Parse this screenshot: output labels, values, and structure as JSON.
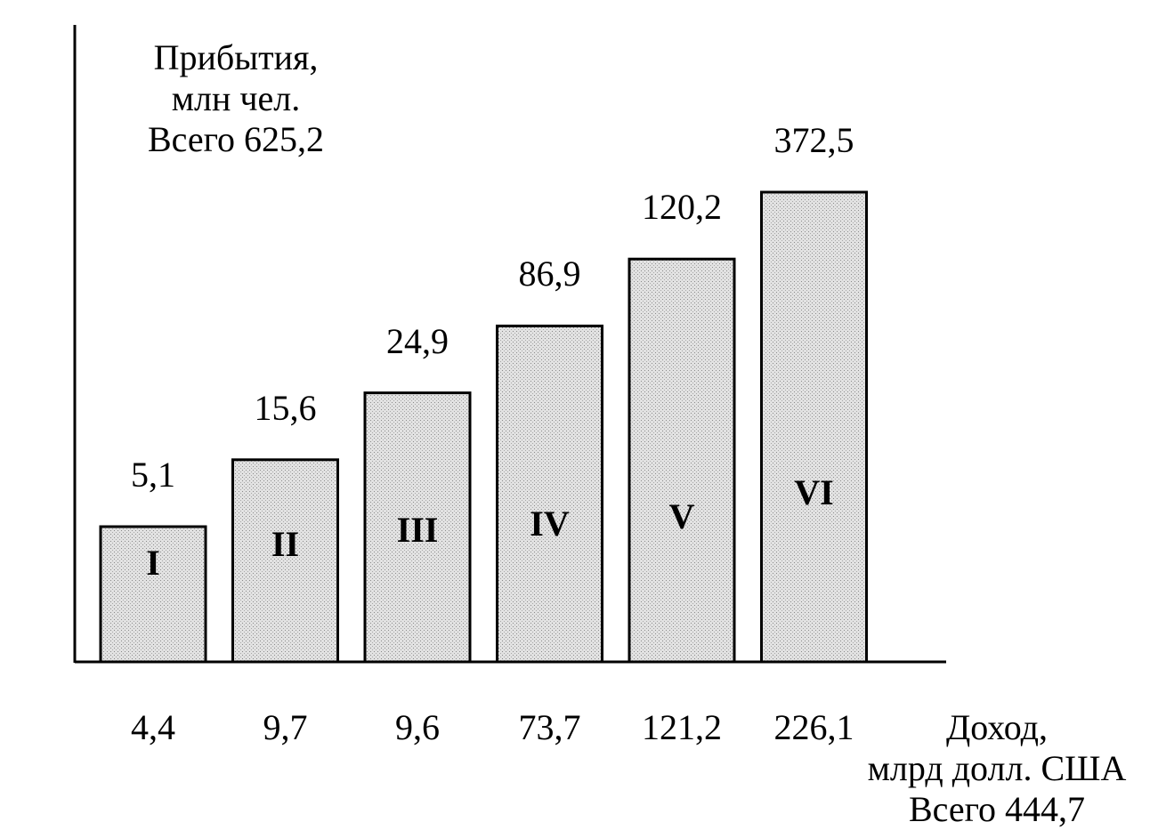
{
  "chart_data": {
    "type": "bar",
    "categories": [
      "I",
      "II",
      "III",
      "IV",
      "V",
      "VI"
    ],
    "series": [
      {
        "values": [
          5.1,
          15.6,
          24.9,
          86.9,
          120.2,
          372.5
        ]
      }
    ],
    "value_labels": [
      "5,1",
      "15,6",
      "24,9",
      "86,9",
      "120,2",
      "372,5"
    ],
    "income_labels": [
      "4,4",
      "9,7",
      "9,6",
      "73,7",
      "121,2",
      "226,1"
    ],
    "income_values": [
      4.4,
      9.7,
      9.6,
      73.7,
      121.2,
      226.1
    ],
    "y_axis_label": [
      "Прибытия,",
      "млн чел.",
      "Всего 625,2"
    ],
    "x_axis_label": [
      "Доход,",
      "млрд долл. США",
      "Всего 444,7"
    ],
    "grid": false,
    "colors": {
      "bar_fill": "#d6d6d6",
      "bar_stroke": "#000000"
    }
  }
}
